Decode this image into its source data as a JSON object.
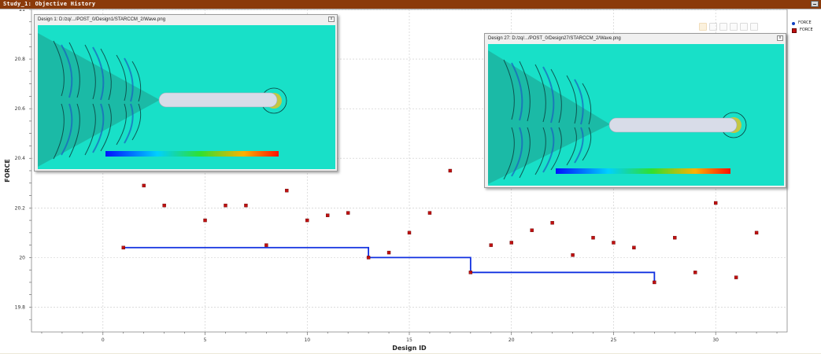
{
  "window": {
    "title": "Study_1: Objective History"
  },
  "legend": {
    "items": [
      {
        "label": "FORCE",
        "marker": "circle",
        "color": "#1040c0"
      },
      {
        "label": "FORCE",
        "marker": "square",
        "color": "#c01010"
      }
    ]
  },
  "popups": [
    {
      "title": "Design 1: D:/zq/.../POST_0/Design1/STARCCM_2/Wave.png",
      "close_label": "x"
    },
    {
      "title": "Design 27: D:/zq/.../POST_0/Design27/STARCCM_2/Wave.png",
      "close_label": "x"
    }
  ],
  "colors": {
    "best_line": "#1030e0",
    "points": "#c01010",
    "titlebar": "#8b3a0a"
  },
  "chart_data": {
    "type": "scatter",
    "title": "",
    "xlabel": "Design ID",
    "ylabel": "FORCE",
    "xlim": [
      -3.5,
      33.5
    ],
    "ylim": [
      19.7,
      21
    ],
    "xticks": [
      0,
      5,
      10,
      15,
      20,
      25,
      30
    ],
    "yticks": [
      19.8,
      20,
      20.2,
      20.4,
      20.6,
      20.8,
      21
    ],
    "grid": true,
    "legend_position": "top-right",
    "series": [
      {
        "type": "scatter",
        "x": [
          1,
          2,
          3,
          5,
          6,
          7,
          8,
          9,
          10,
          11,
          12,
          13,
          14,
          15,
          16,
          17,
          18,
          19,
          20,
          21,
          22,
          23,
          24,
          25,
          26,
          27,
          28,
          29,
          30,
          31,
          32
        ],
        "y": [
          20.04,
          20.29,
          20.21,
          20.15,
          20.21,
          20.21,
          20.05,
          20.27,
          20.15,
          20.17,
          20.18,
          20.0,
          20.02,
          20.1,
          20.18,
          20.35,
          19.94,
          20.05,
          20.06,
          20.11,
          20.14,
          20.01,
          20.08,
          20.06,
          20.04,
          19.9,
          20.08,
          19.94,
          20.22,
          19.92,
          20.1
        ]
      },
      {
        "type": "step",
        "x": [
          1,
          13,
          18,
          27
        ],
        "y": [
          20.04,
          20.0,
          19.94,
          19.9
        ]
      }
    ]
  }
}
